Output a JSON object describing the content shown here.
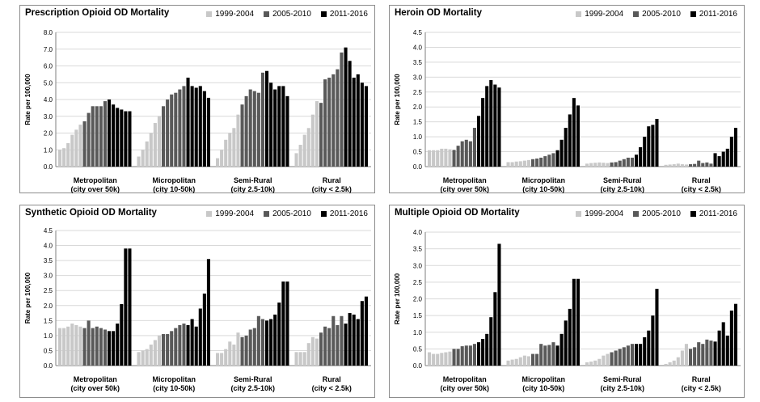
{
  "colors": {
    "p1": "#c8c8c8",
    "p2": "#595959",
    "p3": "#000000",
    "grid": "#d9d9d9",
    "axis": "#7f7f7f"
  },
  "chart_data": [
    {
      "type": "bar",
      "title": "Prescription Opioid OD Mortality",
      "ylabel": "Rate per 100,000",
      "ylim": [
        0,
        8
      ],
      "yticks": [
        "0.0",
        "1.0",
        "2.0",
        "3.0",
        "4.0",
        "5.0",
        "6.0",
        "7.0",
        "8.0"
      ],
      "legend": [
        "1999-2004",
        "2005-2010",
        "2011-2016"
      ],
      "categories": [
        {
          "line1": "Metropolitan",
          "line2": "(city over 50k)",
          "values": [
            1.0,
            1.1,
            1.4,
            1.9,
            2.2,
            2.5,
            2.7,
            3.2,
            3.6,
            3.6,
            3.6,
            3.9,
            4.0,
            3.7,
            3.5,
            3.4,
            3.3,
            3.3
          ]
        },
        {
          "line1": "Micropolitan",
          "line2": "(city 10-50k)",
          "values": [
            0.6,
            1.0,
            1.5,
            2.0,
            2.6,
            3.0,
            3.6,
            4.0,
            4.3,
            4.4,
            4.6,
            4.8,
            5.3,
            4.8,
            4.7,
            4.8,
            4.5,
            4.1
          ]
        },
        {
          "line1": "Semi-Rural",
          "line2": "(city 2.5-10k)",
          "values": [
            0.5,
            1.0,
            1.6,
            2.0,
            2.3,
            3.1,
            3.7,
            4.2,
            4.6,
            4.5,
            4.4,
            5.6,
            5.7,
            5.0,
            4.6,
            4.8,
            4.8,
            4.2
          ]
        },
        {
          "line1": "Rural",
          "line2": "(city < 2.5k)",
          "values": [
            0.8,
            1.3,
            1.9,
            2.3,
            3.1,
            3.9,
            3.8,
            5.2,
            5.3,
            5.5,
            5.8,
            6.8,
            7.1,
            6.3,
            5.3,
            5.5,
            5.0,
            4.8
          ]
        }
      ]
    },
    {
      "type": "bar",
      "title": "Heroin OD Mortality",
      "ylabel": "Rate per 100,000",
      "ylim": [
        0,
        4.5
      ],
      "yticks": [
        "0.0",
        "0.5",
        "1.0",
        "1.5",
        "2.0",
        "2.5",
        "3.0",
        "3.5",
        "4.0",
        "4.5"
      ],
      "legend": [
        "1999-2004",
        "2005-2010",
        "2011-2016"
      ],
      "categories": [
        {
          "line1": "Metropolitan",
          "line2": "(city over 50k)",
          "values": [
            0.55,
            0.55,
            0.55,
            0.6,
            0.6,
            0.58,
            0.56,
            0.7,
            0.85,
            0.9,
            0.85,
            1.3,
            1.7,
            2.3,
            2.7,
            2.9,
            2.75,
            2.65
          ]
        },
        {
          "line1": "Micropolitan",
          "line2": "(city 10-50k)",
          "values": [
            0.15,
            0.15,
            0.17,
            0.18,
            0.2,
            0.22,
            0.25,
            0.27,
            0.3,
            0.35,
            0.4,
            0.45,
            0.55,
            0.9,
            1.3,
            1.75,
            2.3,
            2.05
          ]
        },
        {
          "line1": "Semi-Rural",
          "line2": "(city 2.5-10k)",
          "values": [
            0.1,
            0.12,
            0.13,
            0.14,
            0.13,
            0.12,
            0.14,
            0.15,
            0.2,
            0.25,
            0.3,
            0.3,
            0.4,
            0.65,
            1.0,
            1.35,
            1.4,
            1.6
          ]
        },
        {
          "line1": "Rural",
          "line2": "(city < 2.5k)",
          "values": [
            0.06,
            0.07,
            0.08,
            0.1,
            0.08,
            0.07,
            0.08,
            0.09,
            0.2,
            0.12,
            0.14,
            0.1,
            0.45,
            0.35,
            0.5,
            0.6,
            1.0,
            1.3
          ]
        }
      ]
    },
    {
      "type": "bar",
      "title": "Synthetic Opioid OD Mortality",
      "ylabel": "Rate per 100,000",
      "ylim": [
        0,
        4.5
      ],
      "yticks": [
        "0.0",
        "0.5",
        "1.0",
        "1.5",
        "2.0",
        "2.5",
        "3.0",
        "3.5",
        "4.0",
        "4.5"
      ],
      "legend": [
        "1999-2004",
        "2005-2010",
        "2011-2016"
      ],
      "categories": [
        {
          "line1": "Metropolitan",
          "line2": "(city over 50k)",
          "values": [
            1.25,
            1.25,
            1.3,
            1.4,
            1.35,
            1.3,
            1.25,
            1.5,
            1.25,
            1.3,
            1.25,
            1.2,
            1.15,
            1.15,
            1.4,
            2.05,
            3.9,
            3.9
          ]
        },
        {
          "line1": "Micropolitan",
          "line2": "(city 10-50k)",
          "values": [
            0.45,
            0.5,
            0.55,
            0.7,
            0.85,
            1.0,
            1.05,
            1.05,
            1.15,
            1.25,
            1.35,
            1.4,
            1.35,
            1.55,
            1.3,
            1.9,
            2.4,
            3.55
          ]
        },
        {
          "line1": "Semi-Rural",
          "line2": "(city 2.5-10k)",
          "values": [
            0.42,
            0.42,
            0.55,
            0.8,
            0.7,
            1.1,
            0.95,
            1.0,
            1.2,
            1.25,
            1.65,
            1.55,
            1.5,
            1.55,
            1.7,
            2.1,
            2.8,
            2.8
          ]
        },
        {
          "line1": "Rural",
          "line2": "(city < 2.5k)",
          "values": [
            0.45,
            0.45,
            0.45,
            0.75,
            0.95,
            0.9,
            1.1,
            1.3,
            1.25,
            1.65,
            1.35,
            1.65,
            1.4,
            1.75,
            1.7,
            1.55,
            2.15,
            2.3
          ]
        }
      ]
    },
    {
      "type": "bar",
      "title": "Multiple Opioid OD Mortality",
      "ylabel": "Rate per 100,000",
      "ylim": [
        0,
        4.0
      ],
      "yticks": [
        "0.0",
        "0.5",
        "1.0",
        "1.5",
        "2.0",
        "2.5",
        "3.0",
        "3.5",
        "4.0"
      ],
      "legend": [
        "1999-2004",
        "2005-2010",
        "2011-2016"
      ],
      "categories": [
        {
          "line1": "Metropolitan",
          "line2": "(city over 50k)",
          "values": [
            0.4,
            0.35,
            0.35,
            0.38,
            0.4,
            0.42,
            0.5,
            0.5,
            0.58,
            0.6,
            0.6,
            0.65,
            0.7,
            0.8,
            0.95,
            1.45,
            2.2,
            3.65
          ]
        },
        {
          "line1": "Micropolitan",
          "line2": "(city 10-50k)",
          "values": [
            0.15,
            0.18,
            0.2,
            0.25,
            0.3,
            0.28,
            0.35,
            0.35,
            0.65,
            0.6,
            0.62,
            0.7,
            0.6,
            0.95,
            1.35,
            1.7,
            2.6,
            2.6
          ]
        },
        {
          "line1": "Semi-Rural",
          "line2": "(city 2.5-10k)",
          "values": [
            0.1,
            0.12,
            0.15,
            0.2,
            0.3,
            0.35,
            0.4,
            0.45,
            0.5,
            0.55,
            0.6,
            0.65,
            0.65,
            0.65,
            0.85,
            1.05,
            1.5,
            2.3
          ]
        },
        {
          "line1": "Rural",
          "line2": "(city < 2.5k)",
          "values": [
            0.05,
            0.1,
            0.15,
            0.25,
            0.45,
            0.65,
            0.5,
            0.55,
            0.7,
            0.65,
            0.78,
            0.75,
            0.72,
            1.05,
            1.3,
            0.9,
            1.65,
            1.85
          ]
        }
      ]
    }
  ]
}
